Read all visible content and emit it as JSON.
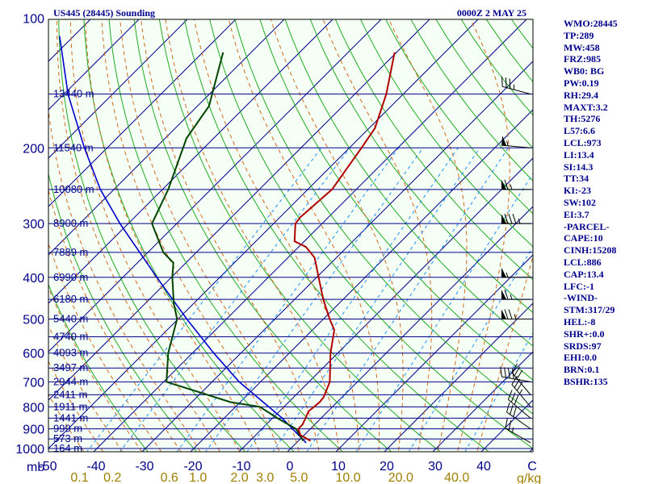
{
  "header": {
    "station": "US445 (28445) Sounding",
    "time": "0000Z  2 MAY 25"
  },
  "indices": [
    "WMO:28445",
    "TP:289",
    "MW:458",
    "FRZ:985",
    "WB0: BG",
    "PW:0.19",
    "RH:29.4",
    "MAXT:3.2",
    "TH:5276",
    "L57:6.6",
    "LCL:973",
    "LI:13.4",
    "SI:14.3",
    "TT:34",
    "KI:-23",
    "SW:102",
    "EI:3.7",
    "-PARCEL-",
    "CAPE:10",
    "CINH:15208",
    "LCL:886",
    "CAP:13.4",
    "LFC:-1",
    "-WIND-",
    "STM:317/29",
    "HEL:-8",
    "SHR+:0.0",
    "SRDS:97",
    "EHI:0.0",
    "BRN:0.1",
    "BSHR:135"
  ],
  "colors": {
    "isobar": "#00008b",
    "isotherm": "#00008b",
    "dry_adiabat": "#22aa22",
    "moist_adiabat": "#d2691e",
    "mixing_ratio": "#1e90ff",
    "temperature": "#b00000",
    "dewpoint": "#004400",
    "parcel": "#0000cc",
    "mixing_ratio_labels": "#a08000",
    "wind_barbs": "#000000"
  },
  "chart_data": {
    "type": "skew-t",
    "title": "US445 (28445) Sounding",
    "pressure_axis": {
      "unit": "mb",
      "range": [
        1000,
        100
      ],
      "scale": "log",
      "ticks": [
        100,
        200,
        300,
        400,
        500,
        600,
        700,
        800,
        900,
        1000
      ]
    },
    "temperature_axis": {
      "unit": "C",
      "range": [
        -50,
        50
      ],
      "tick_labels": [
        "-50",
        "-40",
        "-30",
        "-20",
        "-10",
        "0",
        "10",
        "20",
        "30",
        "40",
        "C"
      ],
      "tick_values": [
        -50,
        -40,
        -30,
        -20,
        -10,
        0,
        10,
        20,
        30,
        40,
        50
      ]
    },
    "mixing_ratio_axis": {
      "unit": "g/kg",
      "labels": [
        "0.1",
        "0.2",
        "0.6",
        "1.0",
        "2.0",
        "3.0",
        "5.0",
        "10.0",
        "20.0",
        "40.0"
      ],
      "values": [
        0.1,
        0.2,
        0.6,
        1.0,
        2.0,
        3.0,
        5.0,
        10.0,
        20.0,
        40.0
      ]
    },
    "height_labels": [
      {
        "p": 150,
        "text": "13440 m"
      },
      {
        "p": 200,
        "text": "11540 m"
      },
      {
        "p": 250,
        "text": "10080 m"
      },
      {
        "p": 300,
        "text": "8900 m"
      },
      {
        "p": 350,
        "text": "7889 m"
      },
      {
        "p": 400,
        "text": "6990 m"
      },
      {
        "p": 450,
        "text": "6180 m"
      },
      {
        "p": 500,
        "text": "5440 m"
      },
      {
        "p": 550,
        "text": "4740 m"
      },
      {
        "p": 600,
        "text": "4093 m"
      },
      {
        "p": 650,
        "text": "3497 m"
      },
      {
        "p": 700,
        "text": "2944 m"
      },
      {
        "p": 750,
        "text": "2411 m"
      },
      {
        "p": 800,
        "text": "1911 m"
      },
      {
        "p": 850,
        "text": "1441 m"
      },
      {
        "p": 900,
        "text": "999 m"
      },
      {
        "p": 950,
        "text": "573 m"
      },
      {
        "p": 1000,
        "text": "164 m"
      }
    ],
    "temperature_profile": [
      {
        "p": 960,
        "t": 2.5
      },
      {
        "p": 930,
        "t": -0.8
      },
      {
        "p": 900,
        "t": -2.5
      },
      {
        "p": 880,
        "t": -2.5
      },
      {
        "p": 850,
        "t": -3.2
      },
      {
        "p": 820,
        "t": -4.0
      },
      {
        "p": 800,
        "t": -3.8
      },
      {
        "p": 780,
        "t": -3.6
      },
      {
        "p": 760,
        "t": -3.8
      },
      {
        "p": 700,
        "t": -5.7
      },
      {
        "p": 600,
        "t": -11.5
      },
      {
        "p": 530,
        "t": -15.5
      },
      {
        "p": 500,
        "t": -18.7
      },
      {
        "p": 450,
        "t": -24.1
      },
      {
        "p": 400,
        "t": -29.6
      },
      {
        "p": 360,
        "t": -34.5
      },
      {
        "p": 340,
        "t": -38.5
      },
      {
        "p": 330,
        "t": -42.0
      },
      {
        "p": 300,
        "t": -45.5
      },
      {
        "p": 290,
        "t": -45.8
      },
      {
        "p": 250,
        "t": -45.0
      },
      {
        "p": 200,
        "t": -47.5
      },
      {
        "p": 180,
        "t": -48.8
      },
      {
        "p": 150,
        "t": -53.5
      },
      {
        "p": 120,
        "t": -60.4
      }
    ],
    "dewpoint_profile": [
      {
        "p": 960,
        "t": 1.0
      },
      {
        "p": 900,
        "t": -3.0
      },
      {
        "p": 850,
        "t": -9.0
      },
      {
        "p": 800,
        "t": -15.0
      },
      {
        "p": 780,
        "t": -22.0
      },
      {
        "p": 700,
        "t": -39.4
      },
      {
        "p": 600,
        "t": -45.0
      },
      {
        "p": 500,
        "t": -50.2
      },
      {
        "p": 460,
        "t": -54.1
      },
      {
        "p": 400,
        "t": -59.8
      },
      {
        "p": 370,
        "t": -62.6
      },
      {
        "p": 350,
        "t": -66.8
      },
      {
        "p": 300,
        "t": -75.1
      },
      {
        "p": 250,
        "t": -78.8
      },
      {
        "p": 190,
        "t": -85.6
      },
      {
        "p": 160,
        "t": -87.6
      },
      {
        "p": 120,
        "t": -95.8
      }
    ],
    "parcel_profile": [
      {
        "p": 970,
        "t": 2.0
      },
      {
        "p": 900,
        "t": -3.7
      },
      {
        "p": 850,
        "t": -8.0
      },
      {
        "p": 700,
        "t": -24.4
      },
      {
        "p": 600,
        "t": -35.6
      },
      {
        "p": 500,
        "t": -48.2
      },
      {
        "p": 400,
        "t": -63.0
      },
      {
        "p": 300,
        "t": -81.7
      },
      {
        "p": 250,
        "t": -92.8
      },
      {
        "p": 200,
        "t": -104.7
      },
      {
        "p": 150,
        "t": -119.2
      },
      {
        "p": 110,
        "t": -132.9
      }
    ],
    "wind_barbs": [
      {
        "p": 970,
        "dir": 300,
        "kt": 25
      },
      {
        "p": 900,
        "dir": 305,
        "kt": 30
      },
      {
        "p": 850,
        "dir": 310,
        "kt": 30
      },
      {
        "p": 800,
        "dir": 320,
        "kt": 35
      },
      {
        "p": 750,
        "dir": 320,
        "kt": 30
      },
      {
        "p": 700,
        "dir": 280,
        "kt": 40
      },
      {
        "p": 500,
        "dir": 270,
        "kt": 75
      },
      {
        "p": 450,
        "dir": 270,
        "kt": 65
      },
      {
        "p": 400,
        "dir": 270,
        "kt": 55
      },
      {
        "p": 300,
        "dir": 270,
        "kt": 85
      },
      {
        "p": 250,
        "dir": 270,
        "kt": 65
      },
      {
        "p": 200,
        "dir": 275,
        "kt": 55
      },
      {
        "p": 150,
        "dir": 285,
        "kt": 35
      }
    ]
  }
}
